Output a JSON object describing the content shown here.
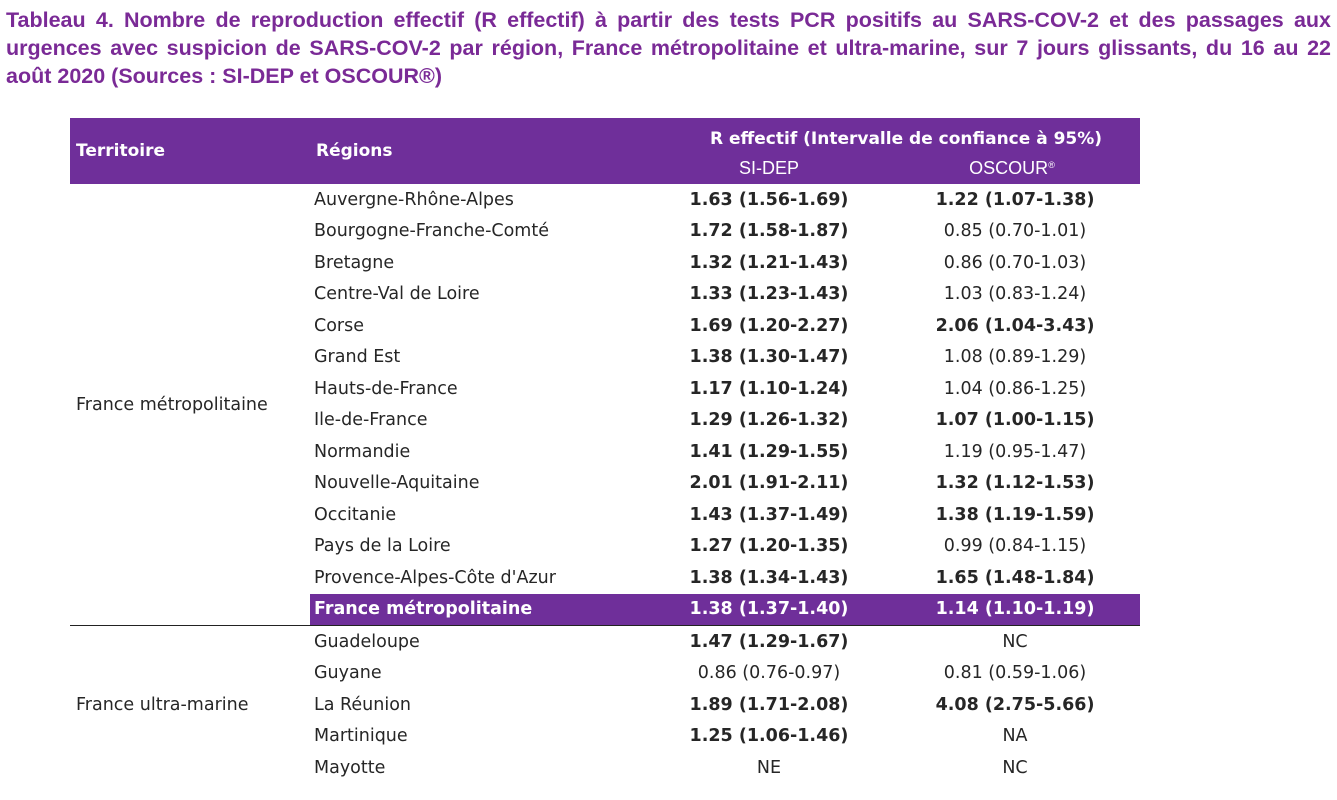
{
  "caption": "Tableau 4. Nombre de reproduction effectif (R effectif) à partir des tests PCR positifs au SARS-COV-2 et des passages aux urgences avec suspicion de SARS-COV-2 par région, France métropolitaine et ultra-marine, sur 7 jours glissants, du 16 au 22 août 2020 (Sources : SI-DEP et OSCOUR®)",
  "header": {
    "territoire": "Territoire",
    "regions": "Régions",
    "reff": "R effectif (Intervalle de confiance à 95%)",
    "sidep": "SI-DEP",
    "oscour": "OSCOUR",
    "oscour_mark": "®"
  },
  "groups": {
    "metro": "France métropolitaine",
    "outremer": "France ultra-marine"
  },
  "rows": [
    {
      "region": "Auvergne-Rhône-Alpes",
      "sidep": "1.63 (1.56-1.69)",
      "oscour": "1.22 (1.07-1.38)"
    },
    {
      "region": "Bourgogne-Franche-Comté",
      "sidep": "1.72 (1.58-1.87)",
      "oscour": "0.85 (0.70-1.01)"
    },
    {
      "region": "Bretagne",
      "sidep": "1.32 (1.21-1.43)",
      "oscour": "0.86 (0.70-1.03)"
    },
    {
      "region": "Centre-Val de Loire",
      "sidep": "1.33 (1.23-1.43)",
      "oscour": "1.03 (0.83-1.24)"
    },
    {
      "region": "Corse",
      "sidep": "1.69 (1.20-2.27)",
      "oscour": "2.06 (1.04-3.43)"
    },
    {
      "region": "Grand Est",
      "sidep": "1.38 (1.30-1.47)",
      "oscour": "1.08 (0.89-1.29)"
    },
    {
      "region": "Hauts-de-France",
      "sidep": "1.17 (1.10-1.24)",
      "oscour": "1.04 (0.86-1.25)"
    },
    {
      "region": "Ile-de-France",
      "sidep": "1.29 (1.26-1.32)",
      "oscour": "1.07 (1.00-1.15)"
    },
    {
      "region": "Normandie",
      "sidep": "1.41 (1.29-1.55)",
      "oscour": "1.19 (0.95-1.47)"
    },
    {
      "region": "Nouvelle-Aquitaine",
      "sidep": "2.01 (1.91-2.11)",
      "oscour": "1.32 (1.12-1.53)"
    },
    {
      "region": "Occitanie",
      "sidep": "1.43 (1.37-1.49)",
      "oscour": "1.38 (1.19-1.59)"
    },
    {
      "region": "Pays de la Loire",
      "sidep": "1.27 (1.20-1.35)",
      "oscour": "0.99 (0.84-1.15)"
    },
    {
      "region": "Provence-Alpes-Côte d'Azur",
      "sidep": "1.38 (1.34-1.43)",
      "oscour": "1.65 (1.48-1.84)"
    },
    {
      "region": "France métropolitaine",
      "sidep": "1.38 (1.37-1.40)",
      "oscour": "1.14 (1.10-1.19)"
    },
    {
      "region": "Guadeloupe",
      "sidep": "1.47 (1.29-1.67)",
      "oscour": "NC"
    },
    {
      "region": "Guyane",
      "sidep": "0.86 (0.76-0.97)",
      "oscour": "0.81 (0.59-1.06)"
    },
    {
      "region": "La Réunion",
      "sidep": "1.89 (1.71-2.08)",
      "oscour": "4.08 (2.75-5.66)"
    },
    {
      "region": "Martinique",
      "sidep": "1.25 (1.06-1.46)",
      "oscour": "NA"
    },
    {
      "region": "Mayotte",
      "sidep": "NE",
      "oscour": "NC"
    }
  ]
}
